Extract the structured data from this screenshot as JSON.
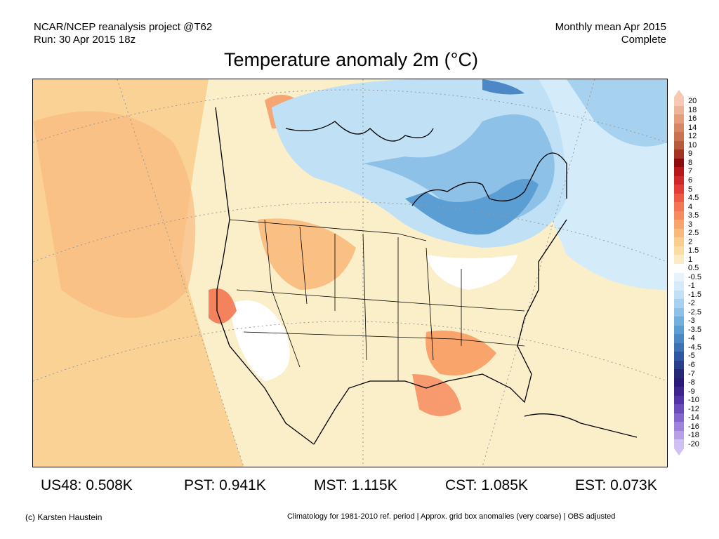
{
  "header": {
    "source": "NCAR/NCEP reanalysis project @T62",
    "run": "Run: 30 Apr 2015 18z",
    "period": "Monthly mean Apr 2015",
    "status": "Complete"
  },
  "title": "Temperature anomaly 2m (°C)",
  "colorbar": {
    "labels": [
      "20",
      "18",
      "16",
      "14",
      "12",
      "10",
      "9",
      "8",
      "7",
      "6",
      "5",
      "4.5",
      "4",
      "3.5",
      "3",
      "2.5",
      "2",
      "1.5",
      "1",
      "0.5",
      "-0.5",
      "-1",
      "-1.5",
      "-2",
      "-2.5",
      "-3",
      "-3.5",
      "-4",
      "-4.5",
      "-5",
      "-6",
      "-7",
      "-8",
      "-9",
      "-10",
      "-12",
      "-14",
      "-16",
      "-18",
      "-20"
    ],
    "colors": [
      "#f7c9b3",
      "#efb497",
      "#e49e7c",
      "#d58764",
      "#c9724f",
      "#b85a3c",
      "#a5331f",
      "#8d0b0b",
      "#b8171a",
      "#cf2828",
      "#e23d36",
      "#ee5a43",
      "#f37551",
      "#f68c5e",
      "#f8a46b",
      "#f9b97a",
      "#f9cd8c",
      "#fadda2",
      "#fbecc5",
      "#ffffff",
      "#e6f3fc",
      "#d4ebfa",
      "#bfe0f5",
      "#a6d1ef",
      "#8dc1e7",
      "#73b0de",
      "#5a9ed4",
      "#4c88c5",
      "#3d72b5",
      "#2e58a1",
      "#273f8c",
      "#252777",
      "#2b1a7a",
      "#3e248f",
      "#5433a6",
      "#6c4bbc",
      "#8566cd",
      "#9e82db",
      "#b8a0e7",
      "#cfc1f4"
    ]
  },
  "stats": {
    "us48": "US48: 0.508K",
    "pst": "PST: 0.941K",
    "mst": "MST: 1.115K",
    "cst": "CST: 1.085K",
    "est": "EST: 0.073K"
  },
  "footer": {
    "credit": "(c) Karsten Haustein",
    "note": "Climatology for 1981-2010 ref. period | Approx. grid box anomalies (very coarse) | OBS adjusted"
  }
}
